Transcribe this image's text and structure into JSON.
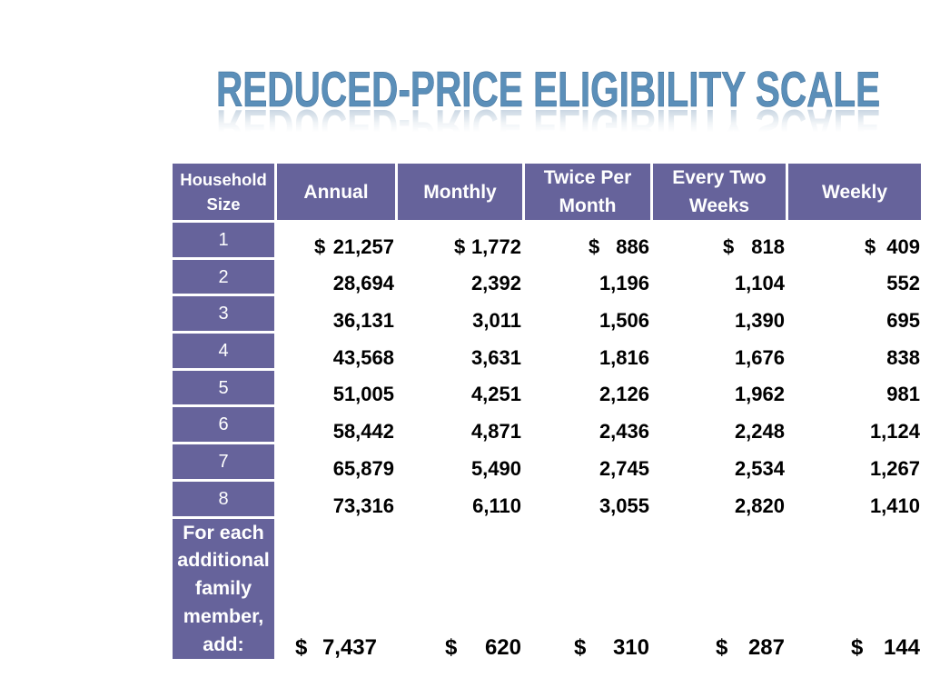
{
  "slide": {
    "title": "REDUCED-PRICE ELIGIBILITY SCALE"
  },
  "table": {
    "header": {
      "household_size": "Household Size",
      "annual": "Annual",
      "monthly": "Monthly",
      "twice_per_month": "Twice Per Month",
      "every_two_weeks": "Every Two Weeks",
      "weekly": "Weekly"
    },
    "rows": [
      {
        "size": "1",
        "currency": "$",
        "values": [
          "21,257",
          "1,772",
          "886",
          "818",
          "409"
        ]
      },
      {
        "size": "2",
        "values": [
          "28,694",
          "2,392",
          "1,196",
          "1,104",
          "552"
        ]
      },
      {
        "size": "3",
        "values": [
          "36,131",
          "3,011",
          "1,506",
          "1,390",
          "695"
        ]
      },
      {
        "size": "4",
        "values": [
          "43,568",
          "3,631",
          "1,816",
          "1,676",
          "838"
        ]
      },
      {
        "size": "5",
        "values": [
          "51,005",
          "4,251",
          "2,126",
          "1,962",
          "981"
        ]
      },
      {
        "size": "6",
        "values": [
          "58,442",
          "4,871",
          "2,436",
          "2,248",
          "1,124"
        ]
      },
      {
        "size": "7",
        "values": [
          "65,879",
          "5,490",
          "2,745",
          "2,534",
          "1,267"
        ]
      },
      {
        "size": "8",
        "values": [
          "73,316",
          "6,110",
          "3,055",
          "2,820",
          "1,410"
        ]
      }
    ],
    "additional_member": {
      "label": "For each additional family member, add:",
      "currency": "$",
      "values": [
        "7,437",
        "620",
        "310",
        "287",
        "144"
      ]
    }
  },
  "colors": {
    "header_bg": "#66639b",
    "title": "#5b8fb9",
    "values_text": "#000000"
  }
}
